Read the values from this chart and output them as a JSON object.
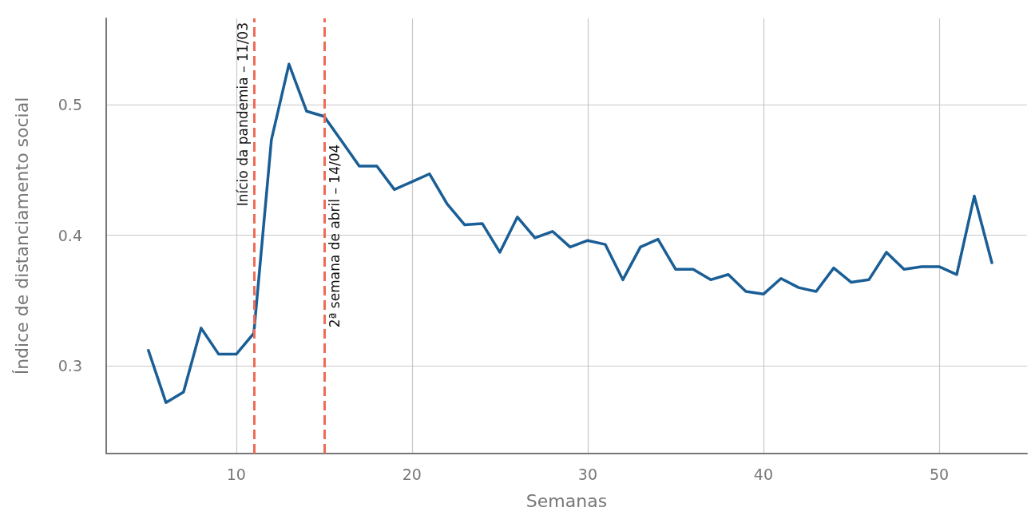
{
  "chart_data": {
    "type": "line",
    "xlabel": "Semanas",
    "ylabel": "Índice de distanciamento social",
    "x": [
      5,
      6,
      7,
      8,
      9,
      10,
      11,
      12,
      13,
      14,
      15,
      16,
      17,
      18,
      19,
      20,
      21,
      22,
      23,
      24,
      25,
      26,
      27,
      28,
      29,
      30,
      31,
      32,
      33,
      34,
      35,
      36,
      37,
      38,
      39,
      40,
      41,
      42,
      43,
      44,
      45,
      46,
      47,
      48,
      49,
      50,
      51,
      52,
      53
    ],
    "series": [
      {
        "color": "#1a5e96",
        "values": [
          0.312,
          0.272,
          0.28,
          0.329,
          0.309,
          0.309,
          0.325,
          0.473,
          0.531,
          0.495,
          0.491,
          0.472,
          0.453,
          0.453,
          0.435,
          0.441,
          0.447,
          0.424,
          0.408,
          0.409,
          0.387,
          0.414,
          0.398,
          0.403,
          0.391,
          0.396,
          0.393,
          0.366,
          0.391,
          0.397,
          0.374,
          0.374,
          0.366,
          0.37,
          0.357,
          0.355,
          0.367,
          0.36,
          0.357,
          0.375,
          0.364,
          0.366,
          0.387,
          0.374,
          0.376,
          0.376,
          0.37,
          0.43,
          0.379
        ]
      }
    ],
    "xlim": [
      2.6,
      55
    ],
    "xticks": [
      10,
      20,
      30,
      40,
      50
    ],
    "ylim": [
      0.233,
      0.566
    ],
    "yticks": [
      0.3,
      0.4,
      0.5
    ],
    "ref_lines": [
      {
        "axis": "x",
        "value": 11,
        "label": "Início da pandemia – 11/03",
        "color": "#ee6b57",
        "line_style": "dashed"
      },
      {
        "axis": "x",
        "value": 15,
        "label": "2ª semana de abril – 14/04",
        "color": "#ee6b57",
        "line_style": "dashed"
      }
    ],
    "grid": true,
    "marker": "none",
    "line_style": "solid"
  }
}
